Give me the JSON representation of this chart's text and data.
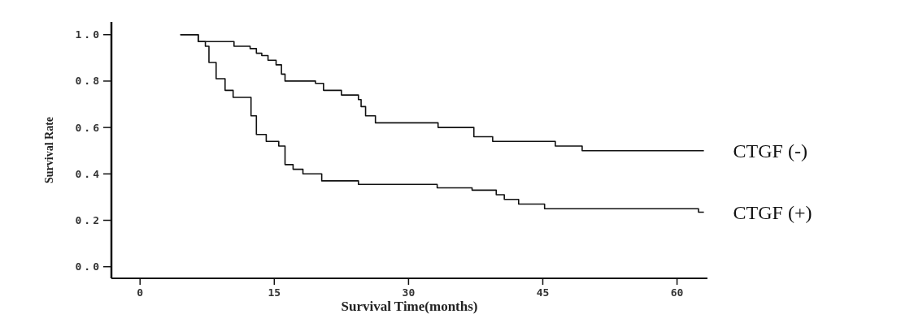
{
  "chart_data": {
    "type": "step",
    "xlabel": "Survival Time(months)",
    "ylabel": "Survival Rate",
    "xlim": [
      -3.2,
      63.4
    ],
    "ylim": [
      -0.05,
      1.055
    ],
    "xticks": [
      0,
      15,
      30,
      45,
      60
    ],
    "yticks": [
      {
        "value": 0,
        "label": "0.0"
      },
      0.2,
      0.4,
      0.6,
      0.8,
      {
        "value": 1,
        "label": "1.0"
      }
    ],
    "grid": false,
    "series": [
      {
        "name": "CTGF (-)",
        "color": "#111111",
        "x": [
          4.5,
          6.5,
          10.5,
          12.3,
          13,
          13.6,
          14.3,
          15.2,
          15.8,
          16.2,
          19.6,
          20.5,
          22.5,
          24.4,
          24.7,
          25.2,
          26.3,
          33.3,
          37.3,
          39.4,
          46.4,
          49.4,
          63
        ],
        "values": [
          1.0,
          0.97,
          0.95,
          0.94,
          0.92,
          0.91,
          0.89,
          0.87,
          0.83,
          0.8,
          0.79,
          0.76,
          0.74,
          0.72,
          0.69,
          0.65,
          0.62,
          0.6,
          0.56,
          0.54,
          0.52,
          0.5,
          0.5
        ]
      },
      {
        "name": "CTGF (+)",
        "color": "#111111",
        "x": [
          4.5,
          6.5,
          7.3,
          7.7,
          8.5,
          9.5,
          10.4,
          12.4,
          13,
          14.1,
          15.5,
          16.2,
          17.1,
          18.2,
          20.3,
          24.4,
          33.2,
          37.1,
          39.8,
          40.7,
          42.3,
          45.2,
          62.4,
          63
        ],
        "values": [
          1.0,
          0.97,
          0.95,
          0.88,
          0.81,
          0.76,
          0.73,
          0.65,
          0.57,
          0.54,
          0.52,
          0.44,
          0.42,
          0.4,
          0.37,
          0.355,
          0.34,
          0.33,
          0.31,
          0.29,
          0.27,
          0.25,
          0.235,
          0.235
        ]
      }
    ]
  }
}
